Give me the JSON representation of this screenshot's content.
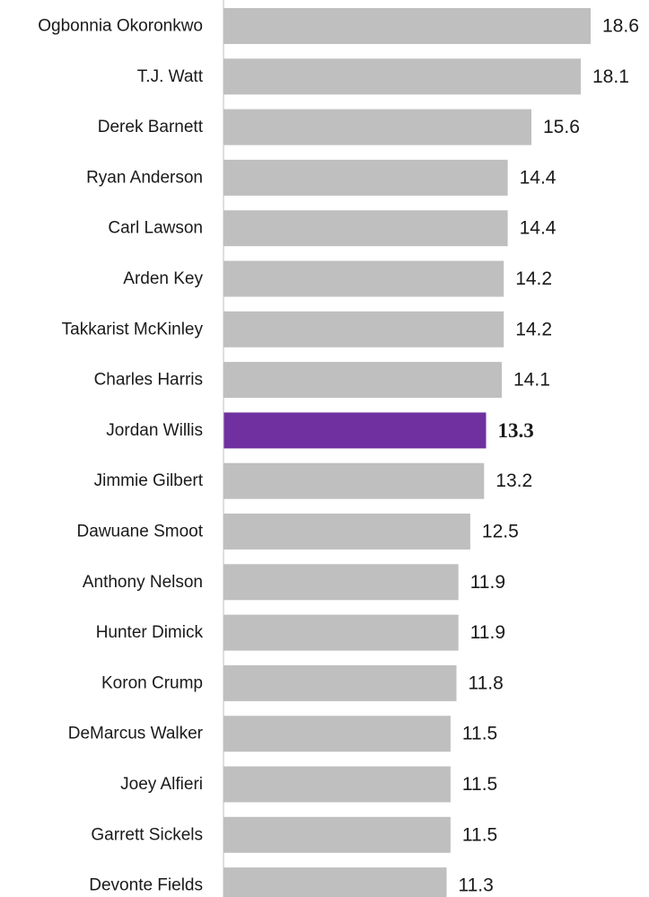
{
  "chart_data": {
    "type": "bar",
    "orientation": "horizontal",
    "title": "",
    "xlabel": "",
    "ylabel": "",
    "xlim": [
      0,
      18.6
    ],
    "grid": false,
    "legend": "none",
    "highlight_category": "Jordan Willis",
    "colors": {
      "default_bar": "#bfbfbf",
      "highlight_bar": "#7030a0",
      "axis_line": "#bfbfbf",
      "text": "#1a1a1a"
    },
    "categories": [
      "Ogbonnia Okoronkwo",
      "T.J. Watt",
      "Derek Barnett",
      "Ryan Anderson",
      "Carl Lawson",
      "Arden Key",
      "Takkarist McKinley",
      "Charles Harris",
      "Jordan Willis",
      "Jimmie Gilbert",
      "Dawuane Smoot",
      "Anthony Nelson",
      "Hunter Dimick",
      "Koron Crump",
      "DeMarcus Walker",
      "Joey Alfieri",
      "Garrett Sickels",
      "Devonte Fields"
    ],
    "values": [
      18.6,
      18.1,
      15.6,
      14.4,
      14.4,
      14.2,
      14.2,
      14.1,
      13.3,
      13.2,
      12.5,
      11.9,
      11.9,
      11.8,
      11.5,
      11.5,
      11.5,
      11.3
    ],
    "value_labels": [
      "18.6",
      "18.1",
      "15.6",
      "14.4",
      "14.4",
      "14.2",
      "14.2",
      "14.1",
      "13.3",
      "13.2",
      "12.5",
      "11.9",
      "11.9",
      "11.8",
      "11.5",
      "11.5",
      "11.5",
      "11.3"
    ]
  }
}
